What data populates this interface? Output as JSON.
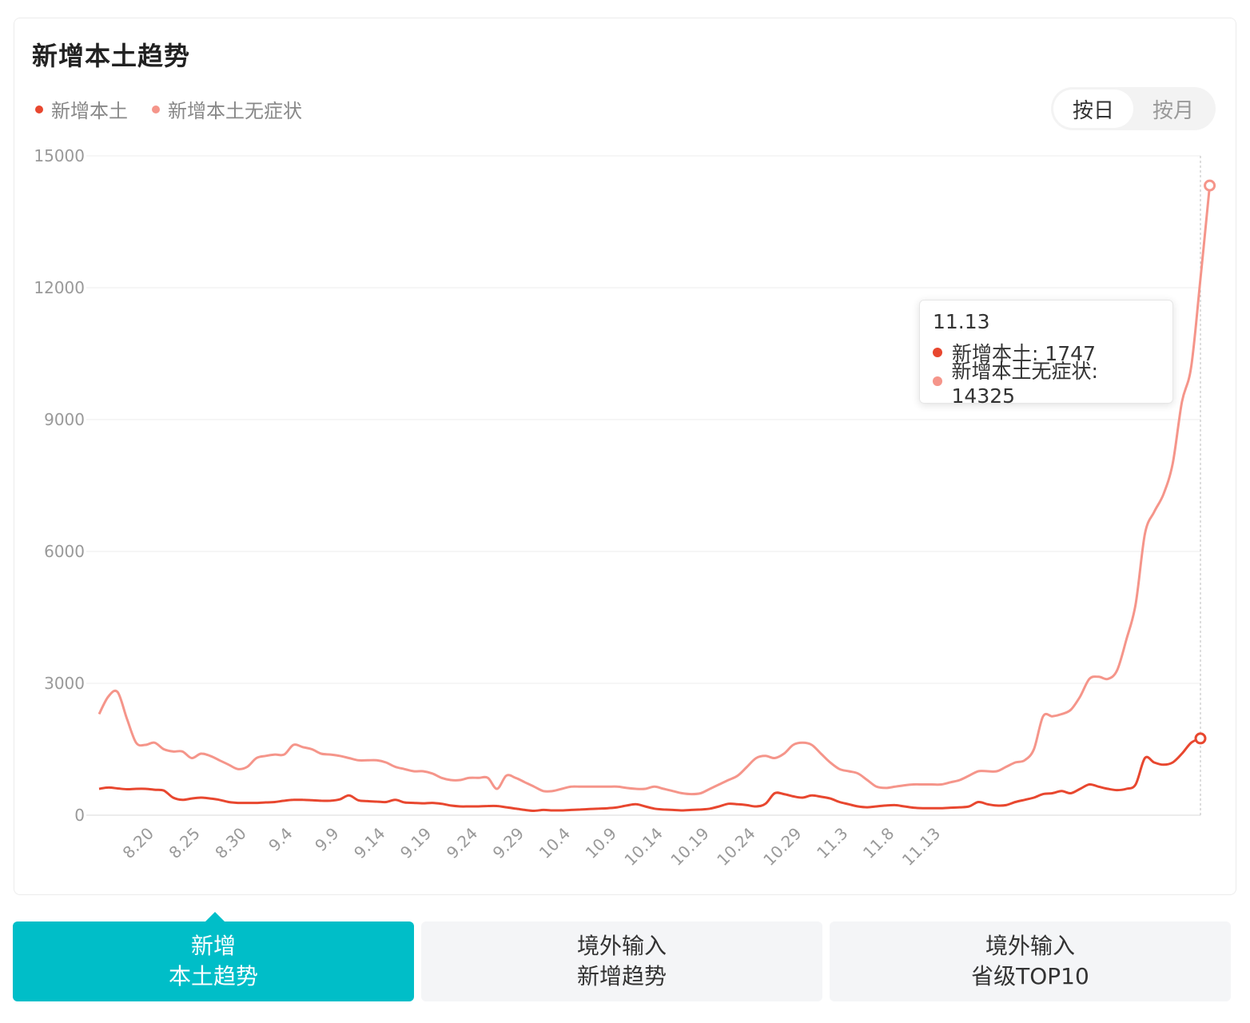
{
  "card": {
    "title": "新增本土趋势"
  },
  "toggle": {
    "options": [
      "按日",
      "按月"
    ],
    "active": "按日"
  },
  "tooltip": {
    "date": "11.13",
    "rows": [
      "新增本土: 1747",
      "新增本土无症状: 14325"
    ]
  },
  "tabs": [
    {
      "line1": "新增",
      "line2": "本土趋势",
      "active": true
    },
    {
      "line1": "境外输入",
      "line2": "新增趋势",
      "active": false
    },
    {
      "line1": "境外输入",
      "line2": "省级TOP10",
      "active": false
    }
  ],
  "colors": {
    "local": "#e8472f",
    "asymptomatic": "#f5958a",
    "accent": "#00bec8"
  },
  "chart_data": {
    "type": "line",
    "start_date": "8.14",
    "x_tick_labels": [
      "8.20",
      "8.25",
      "8.30",
      "9.4",
      "9.9",
      "9.14",
      "9.19",
      "9.24",
      "9.29",
      "10.4",
      "10.9",
      "10.14",
      "10.19",
      "10.24",
      "10.29",
      "11.3",
      "11.8",
      "11.13"
    ],
    "y_ticks": [
      "15000",
      "12000",
      "9000",
      "6000",
      "3000",
      "0"
    ],
    "ylim": [
      0,
      15000
    ],
    "grid": true,
    "legend_position": "top-left",
    "highlighted_date": "11.13",
    "series": [
      {
        "name": "新增本土",
        "color": "#e8472f",
        "values": [
          600,
          630,
          610,
          590,
          600,
          600,
          580,
          560,
          400,
          350,
          380,
          400,
          380,
          350,
          300,
          280,
          280,
          280,
          290,
          300,
          330,
          350,
          350,
          340,
          330,
          330,
          360,
          450,
          340,
          320,
          310,
          300,
          350,
          290,
          280,
          270,
          280,
          260,
          220,
          200,
          200,
          200,
          210,
          210,
          180,
          150,
          120,
          100,
          120,
          110,
          110,
          120,
          130,
          140,
          150,
          160,
          180,
          220,
          250,
          200,
          150,
          130,
          120,
          110,
          120,
          130,
          150,
          200,
          260,
          250,
          230,
          200,
          260,
          500,
          480,
          430,
          400,
          450,
          420,
          380,
          300,
          250,
          200,
          180,
          200,
          220,
          230,
          200,
          170,
          160,
          160,
          160,
          170,
          180,
          200,
          300,
          250,
          220,
          230,
          300,
          350,
          400,
          480,
          500,
          550,
          500,
          600,
          700,
          650,
          600,
          570,
          600,
          700,
          1300,
          1200,
          1150,
          1200,
          1400,
          1650,
          1747
        ]
      },
      {
        "name": "新增本土无症状",
        "color": "#f5958a",
        "values": [
          2300,
          2700,
          2800,
          2200,
          1650,
          1600,
          1650,
          1500,
          1450,
          1450,
          1300,
          1400,
          1350,
          1250,
          1150,
          1050,
          1100,
          1300,
          1350,
          1380,
          1380,
          1600,
          1550,
          1500,
          1400,
          1380,
          1350,
          1300,
          1250,
          1250,
          1250,
          1200,
          1100,
          1050,
          1000,
          1000,
          950,
          850,
          800,
          800,
          850,
          850,
          850,
          600,
          900,
          850,
          750,
          650,
          550,
          550,
          600,
          650,
          650,
          650,
          650,
          650,
          650,
          620,
          600,
          600,
          650,
          600,
          550,
          500,
          480,
          500,
          600,
          700,
          800,
          900,
          1100,
          1300,
          1350,
          1300,
          1400,
          1600,
          1650,
          1600,
          1400,
          1200,
          1050,
          1000,
          950,
          800,
          650,
          620,
          650,
          680,
          700,
          700,
          700,
          700,
          750,
          800,
          900,
          1000,
          1000,
          1000,
          1100,
          1200,
          1250,
          1500,
          2250,
          2250,
          2300,
          2400,
          2700,
          3100,
          3150,
          3100,
          3300,
          4000,
          4800,
          6400,
          6900,
          7300,
          8000,
          9400,
          10200,
          12200,
          14325
        ]
      }
    ]
  }
}
